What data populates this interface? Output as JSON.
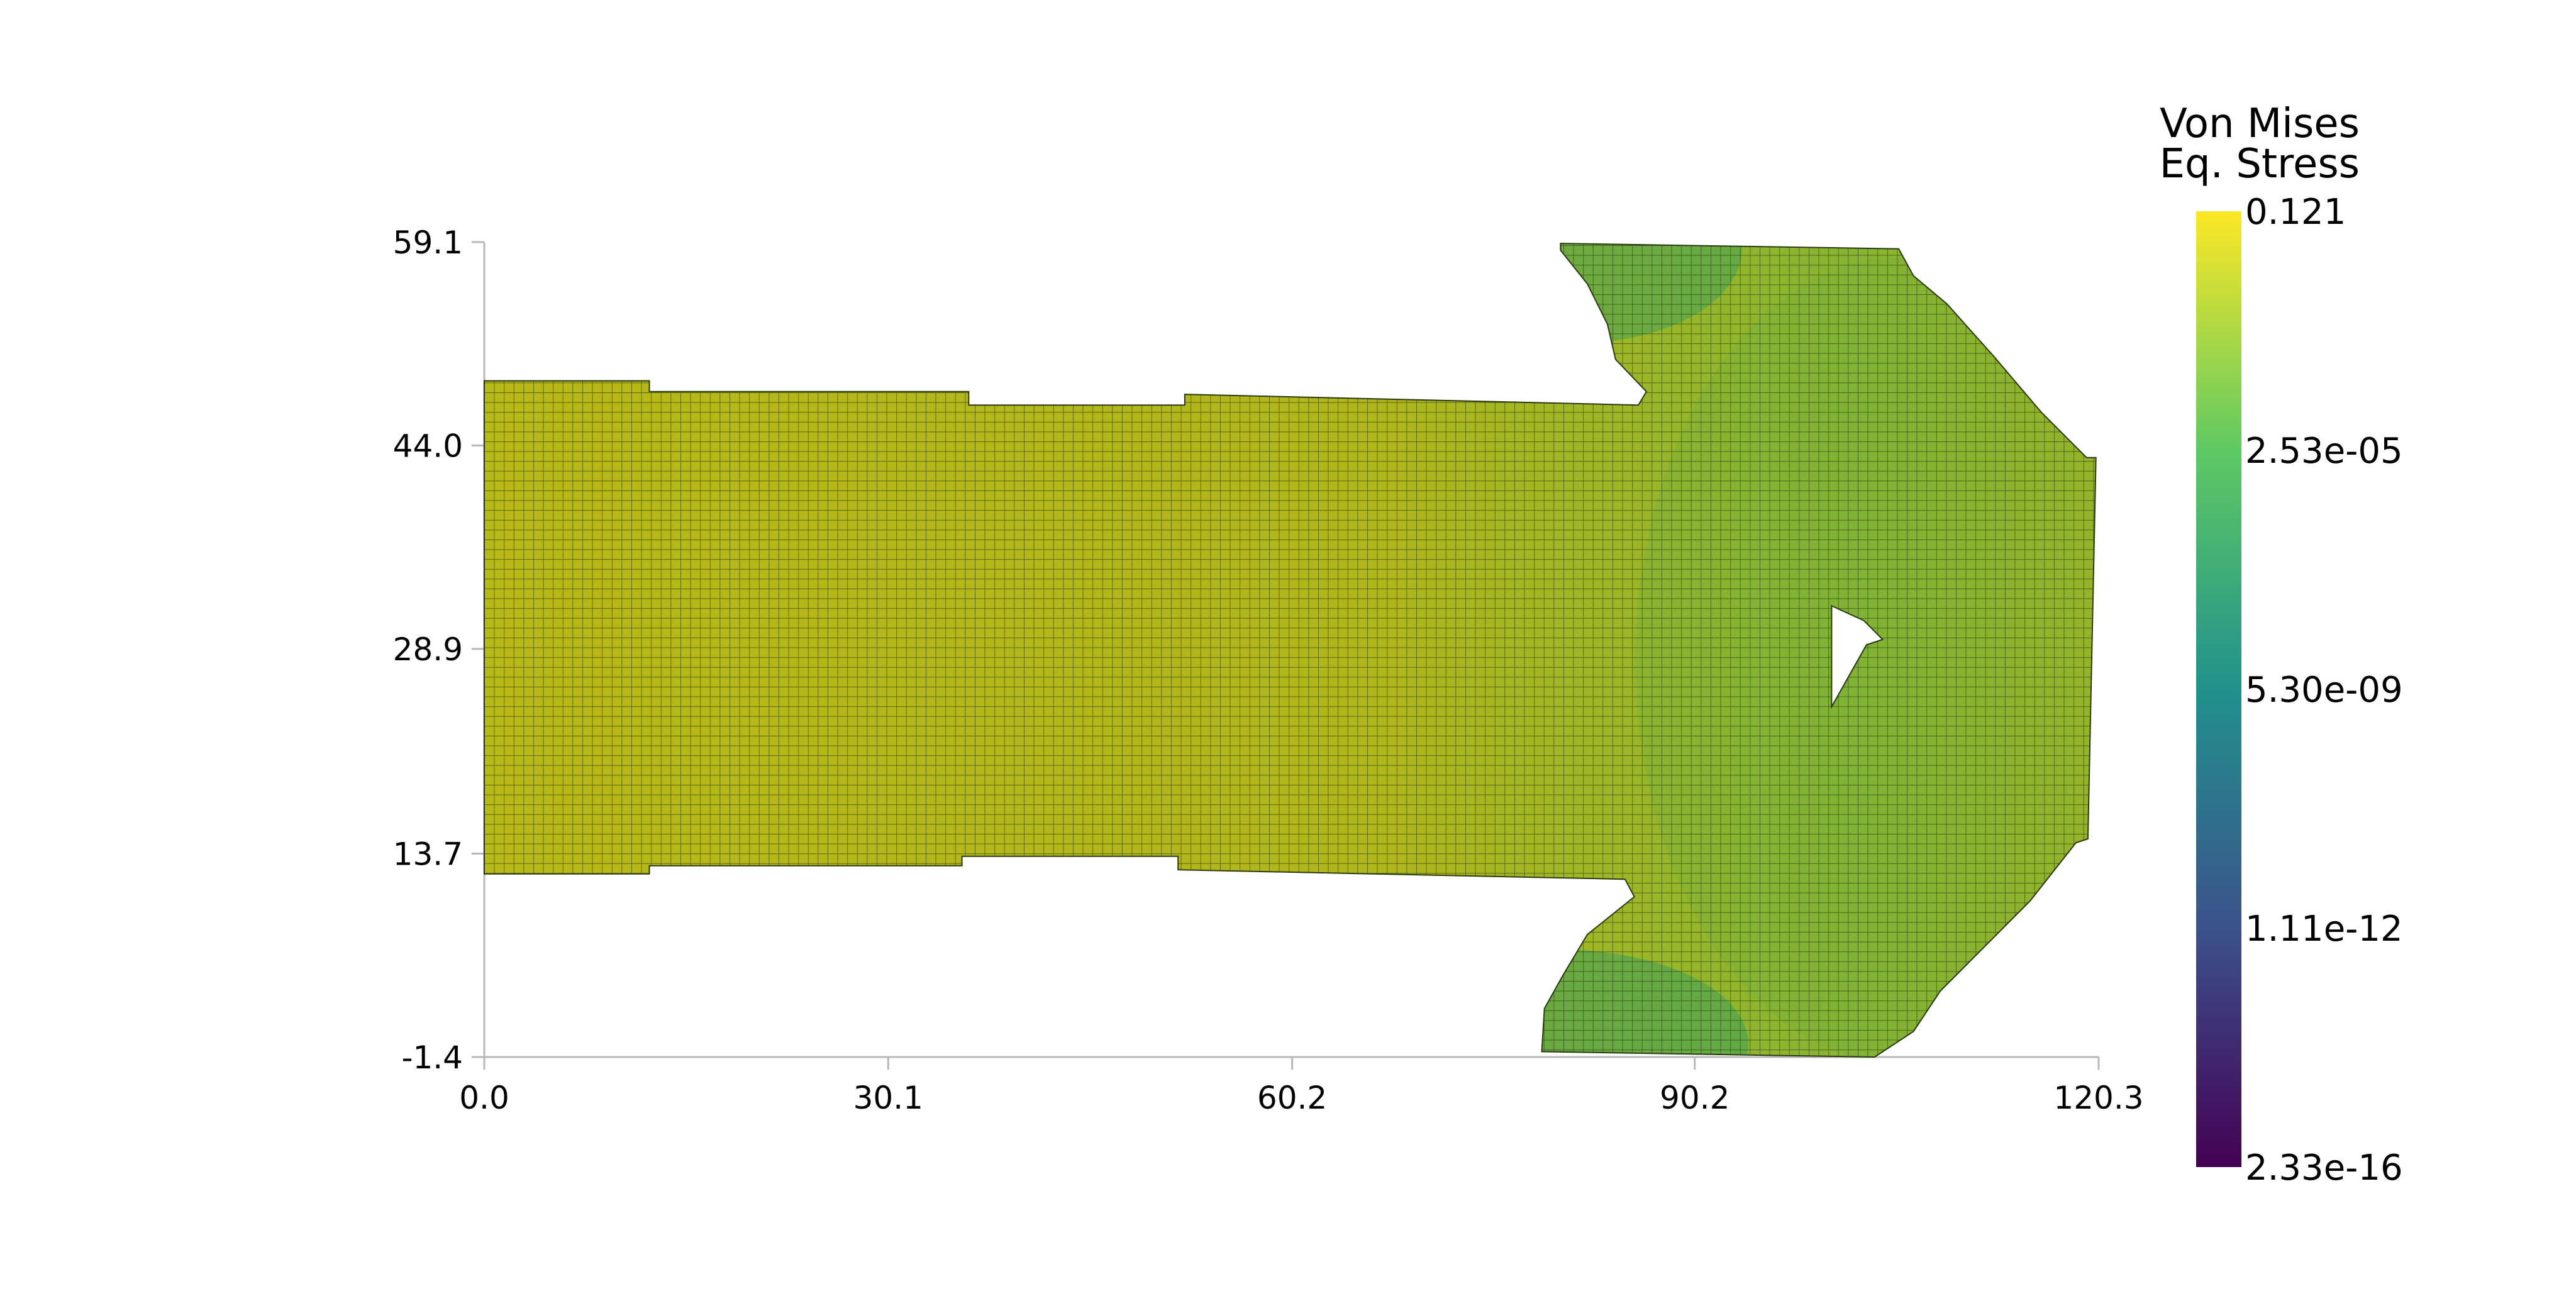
{
  "chart_data": {
    "type": "heatmap",
    "title": "",
    "xlabel": "",
    "ylabel": "",
    "xlim": [
      0.0,
      120.3
    ],
    "ylim": [
      -1.4,
      59.1
    ],
    "x_ticks": [
      "0.0",
      "30.1",
      "60.2",
      "90.2",
      "120.3"
    ],
    "y_ticks": [
      "59.1",
      "44.0",
      "28.9",
      "13.7",
      "-1.4"
    ],
    "grid": false,
    "field": "Von Mises Eq. Stress",
    "colorbar": {
      "title_lines": [
        "Von Mises",
        "Eq. Stress"
      ],
      "scale": "log",
      "range": [
        2.33e-16,
        0.121
      ],
      "labels": [
        "0.121",
        "2.53e-05",
        "5.30e-09",
        "1.11e-12",
        "2.33e-16"
      ],
      "colormap": "viridis",
      "colors": [
        "#440154",
        "#3b528b",
        "#21918c",
        "#5ec962",
        "#fde725"
      ]
    },
    "mesh": {
      "dominant_color": "#a8b41a",
      "low_stress_color": "#3a9a5c",
      "mid_color": "#7fb23a",
      "edge_color": "#2a3a10"
    }
  }
}
